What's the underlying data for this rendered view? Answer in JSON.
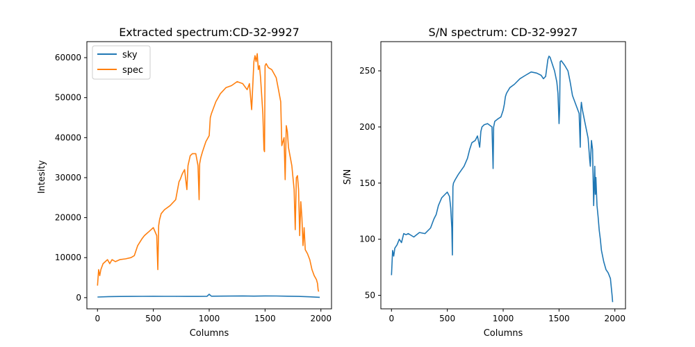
{
  "chart_data": [
    {
      "type": "line",
      "title": "Extracted spectrum:CD-32-9927",
      "xlabel": "Columns",
      "ylabel": "Intesity",
      "xlim": [
        -95,
        2095
      ],
      "ylim": [
        -2800,
        64000
      ],
      "xticks": [
        0,
        500,
        1000,
        1500,
        2000
      ],
      "yticks": [
        0,
        10000,
        20000,
        30000,
        40000,
        50000,
        60000
      ],
      "grid": false,
      "legend": "top-left",
      "series": [
        {
          "name": "sky",
          "color": "#1f77b4",
          "x": [
            0,
            100,
            200,
            300,
            400,
            500,
            600,
            700,
            800,
            900,
            980,
            1000,
            1020,
            1100,
            1200,
            1300,
            1400,
            1500,
            1600,
            1700,
            1800,
            1900,
            1990
          ],
          "y": [
            150,
            250,
            280,
            300,
            320,
            340,
            330,
            320,
            310,
            300,
            320,
            850,
            350,
            380,
            400,
            420,
            380,
            420,
            410,
            350,
            300,
            200,
            80
          ]
        },
        {
          "name": "spec",
          "color": "#ff7f0e",
          "x": [
            0,
            10,
            20,
            30,
            50,
            70,
            90,
            110,
            130,
            160,
            200,
            250,
            300,
            330,
            360,
            400,
            420,
            440,
            460,
            500,
            530,
            540,
            548,
            556,
            570,
            600,
            650,
            700,
            730,
            740,
            760,
            780,
            800,
            810,
            830,
            850,
            880,
            900,
            910,
            915,
            925,
            940,
            970,
            1000,
            1010,
            1020,
            1040,
            1060,
            1080,
            1100,
            1150,
            1200,
            1250,
            1300,
            1340,
            1360,
            1380,
            1400,
            1410,
            1420,
            1430,
            1440,
            1450,
            1460,
            1480,
            1490,
            1495,
            1500,
            1510,
            1530,
            1560,
            1600,
            1620,
            1640,
            1650,
            1670,
            1680,
            1690,
            1700,
            1710,
            1740,
            1760,
            1770,
            1780,
            1790,
            1800,
            1810,
            1820,
            1830,
            1840,
            1850,
            1860,
            1880,
            1900,
            1920,
            1940,
            1960,
            1970,
            1975,
            1980
          ],
          "y": [
            3000,
            7000,
            5500,
            7000,
            8500,
            9000,
            9500,
            8500,
            9500,
            9000,
            9500,
            9700,
            10000,
            10500,
            13000,
            14800,
            15500,
            16000,
            16500,
            17500,
            15500,
            7000,
            18000,
            19500,
            21000,
            22000,
            23000,
            24500,
            29000,
            29500,
            31000,
            32000,
            27000,
            33000,
            35500,
            36000,
            36000,
            33000,
            24500,
            33500,
            35000,
            36500,
            39000,
            40500,
            45000,
            46000,
            47500,
            49000,
            50000,
            51000,
            52500,
            53000,
            54000,
            53500,
            52000,
            53500,
            47000,
            59000,
            60500,
            59000,
            61000,
            57000,
            58000,
            55000,
            46000,
            37000,
            36500,
            58000,
            58500,
            57500,
            57000,
            55000,
            52000,
            49000,
            38000,
            40000,
            29500,
            43000,
            41500,
            37500,
            33000,
            27000,
            17000,
            30000,
            30500,
            27000,
            15500,
            24000,
            20000,
            13000,
            17500,
            12000,
            11000,
            9500,
            7000,
            5500,
            4500,
            3500,
            2000,
            1500
          ]
        }
      ]
    },
    {
      "type": "line",
      "title": "S/N spectrum: CD-32-9927",
      "xlabel": "Columns",
      "ylabel": "S/N",
      "xlim": [
        -95,
        2095
      ],
      "ylim": [
        38,
        276
      ],
      "xticks": [
        0,
        500,
        1000,
        1500,
        2000
      ],
      "yticks": [
        50,
        100,
        150,
        200,
        250
      ],
      "grid": false,
      "legend": "none",
      "series": [
        {
          "color": "#1f77b4",
          "x": [
            0,
            10,
            20,
            30,
            50,
            70,
            90,
            110,
            130,
            150,
            200,
            250,
            300,
            350,
            380,
            400,
            420,
            450,
            480,
            500,
            520,
            530,
            540,
            545,
            550,
            555,
            570,
            600,
            650,
            680,
            700,
            720,
            750,
            770,
            790,
            800,
            810,
            830,
            860,
            900,
            910,
            915,
            925,
            950,
            980,
            1000,
            1010,
            1020,
            1030,
            1060,
            1100,
            1150,
            1200,
            1250,
            1300,
            1340,
            1360,
            1380,
            1400,
            1410,
            1420,
            1440,
            1460,
            1480,
            1490,
            1500,
            1505,
            1510,
            1520,
            1550,
            1580,
            1600,
            1620,
            1650,
            1680,
            1690,
            1695,
            1700,
            1710,
            1730,
            1760,
            1775,
            1780,
            1790,
            1800,
            1810,
            1820,
            1825,
            1830,
            1840,
            1850,
            1860,
            1870,
            1880,
            1900,
            1920,
            1940,
            1960,
            1970,
            1975,
            1980
          ],
          "y": [
            68,
            90,
            85,
            92,
            95,
            100,
            97,
            105,
            104,
            105,
            102,
            106,
            105,
            110,
            118,
            122,
            130,
            137,
            140,
            142,
            138,
            128,
            110,
            86,
            147,
            150,
            153,
            158,
            165,
            172,
            180,
            186,
            188,
            192,
            182,
            196,
            200,
            202,
            203,
            200,
            163,
            200,
            205,
            207,
            209,
            215,
            220,
            227,
            230,
            235,
            238,
            243,
            246,
            249,
            248,
            246,
            243,
            245,
            260,
            263,
            262,
            256,
            250,
            240,
            230,
            203,
            215,
            258,
            259,
            255,
            250,
            240,
            228,
            220,
            212,
            182,
            215,
            222,
            215,
            205,
            190,
            170,
            165,
            188,
            180,
            130,
            165,
            140,
            155,
            130,
            120,
            108,
            100,
            90,
            80,
            73,
            70,
            65,
            55,
            50,
            44
          ]
        }
      ]
    }
  ]
}
